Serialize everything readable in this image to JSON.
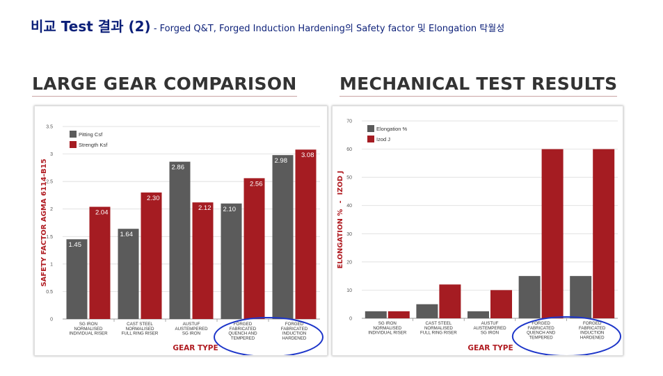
{
  "header": {
    "title_main": "비교 Test 결과 (2)",
    "title_sep": " - ",
    "title_sub": "Forged Q&T, Forged Induction Hardening의 Safety factor 및 Elongation 탁월성"
  },
  "colors": {
    "grey_series": "#5b5b5b",
    "red_series": "#a51c22",
    "highlight_circle": "#1c35c9",
    "title_blue": "#0b1f78"
  },
  "chart_data": [
    {
      "panel_title": "LARGE GEAR COMPARISON",
      "type": "bar",
      "categories": [
        [
          "SG IRON",
          "NORMALISED",
          "INDIVIDUAL RISER"
        ],
        [
          "CAST STEEL",
          "NORMALISED",
          "FULL RING RISER"
        ],
        [
          "AUSTUF",
          "AUSTEMPERED",
          "SG IRON"
        ],
        [
          "FORGED",
          "FABRICATED",
          "QUENCH AND",
          "TEMPERED"
        ],
        [
          "FORGED",
          "FABRICATED",
          "INDUCTION",
          "HARDENED"
        ]
      ],
      "series": [
        {
          "name": "Pitting Csf",
          "color": "#5b5b5b",
          "values": [
            1.45,
            1.64,
            2.86,
            2.1,
            2.98
          ],
          "labels": [
            "1.45",
            "1.64",
            "2.86",
            "2.10",
            "2.98"
          ]
        },
        {
          "name": "Strength Ksf",
          "color": "#a51c22",
          "values": [
            2.04,
            2.3,
            2.12,
            2.56,
            3.08
          ],
          "labels": [
            "2.04",
            "2.30",
            "2.12",
            "2.56",
            "3.08"
          ]
        }
      ],
      "ylim": [
        0,
        3.5
      ],
      "yticks": [
        0,
        0.5,
        1,
        1.5,
        2,
        2.5,
        3,
        3.5
      ],
      "ytick_labels": [
        "0",
        "0.5",
        "1",
        "1.5",
        "2",
        "2.5",
        "3",
        "3.5"
      ],
      "xlabel": "GEAR TYPE",
      "ylabel": "SAFETY FACTOR AGMA 6114-B15",
      "ylabel_parts": [],
      "grid": true,
      "legend": "top-left",
      "highlight_categories": [
        3,
        4
      ]
    },
    {
      "panel_title": "MECHANICAL TEST RESULTS",
      "type": "bar",
      "categories": [
        [
          "SG IRON",
          "NORMALISED",
          "INDIVIDUAL RISER"
        ],
        [
          "CAST STEEL",
          "NORMALISED",
          "FULL RING RISER"
        ],
        [
          "AUSTUF",
          "AUSTEMPERED",
          "SG IRON"
        ],
        [
          "FORGED",
          "FABRICATED",
          "QUENCH AND",
          "TEMPERED"
        ],
        [
          "FORGED",
          "FABRICATED",
          "INDUCTION",
          "HARDENED"
        ]
      ],
      "series": [
        {
          "name": "Elongation %",
          "color": "#5b5b5b",
          "values": [
            2.5,
            5,
            2.5,
            15,
            15
          ],
          "labels": []
        },
        {
          "name": "Izod J",
          "color": "#a51c22",
          "values": [
            2.5,
            12,
            10,
            60,
            60
          ],
          "labels": []
        }
      ],
      "ylim": [
        0,
        70
      ],
      "yticks": [
        0,
        10,
        20,
        30,
        40,
        50,
        60,
        70
      ],
      "ytick_labels": [
        "0",
        "10",
        "20",
        "30",
        "40",
        "50",
        "60",
        "70"
      ],
      "xlabel": "GEAR TYPE",
      "ylabel": "",
      "ylabel_parts": [
        "ELONGATION %",
        "-",
        "IZOD J"
      ],
      "grid": true,
      "legend": "top-left",
      "highlight_categories": [
        3,
        4
      ]
    }
  ]
}
